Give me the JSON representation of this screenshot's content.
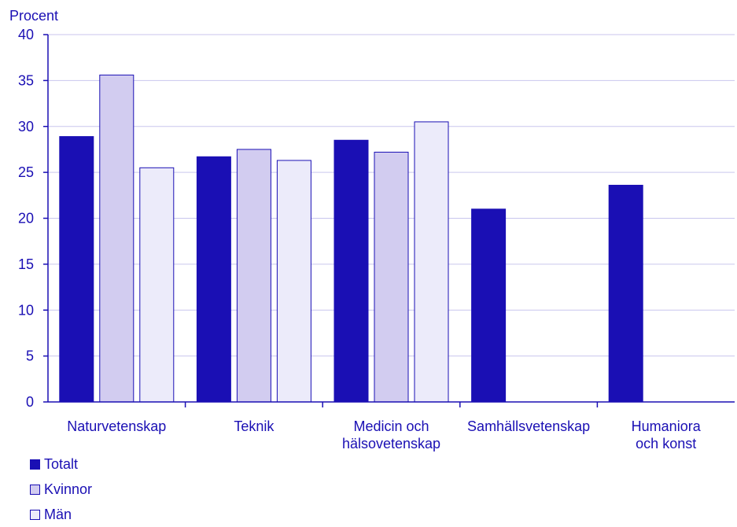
{
  "chart_data": {
    "type": "bar",
    "ylabel": "Procent",
    "xlabel": "",
    "ylim": [
      0,
      40
    ],
    "yticks": [
      0,
      5,
      10,
      15,
      20,
      25,
      30,
      35,
      40
    ],
    "grid": true,
    "legend_position": "bottom-left",
    "categories": [
      [
        "Naturvetenskap"
      ],
      [
        "Teknik"
      ],
      [
        "Medicin och",
        "hälsovetenskap"
      ],
      [
        "Samhällsvetenskap"
      ],
      [
        "Humaniora",
        "och konst"
      ]
    ],
    "series": [
      {
        "name": "Totalt",
        "color": "#1a0fb4",
        "values": [
          28.9,
          26.7,
          28.5,
          21.0,
          23.6
        ]
      },
      {
        "name": "Kvinnor",
        "color": "#d2ccf0",
        "values": [
          35.6,
          27.5,
          27.2,
          null,
          null
        ]
      },
      {
        "name": "Män",
        "color": "#ecebfa",
        "values": [
          25.5,
          26.3,
          30.5,
          null,
          null
        ]
      }
    ],
    "colors": {
      "axis": "#1a0fb4",
      "grid": "#c9c6ee",
      "text": "#1a0fb4"
    }
  }
}
